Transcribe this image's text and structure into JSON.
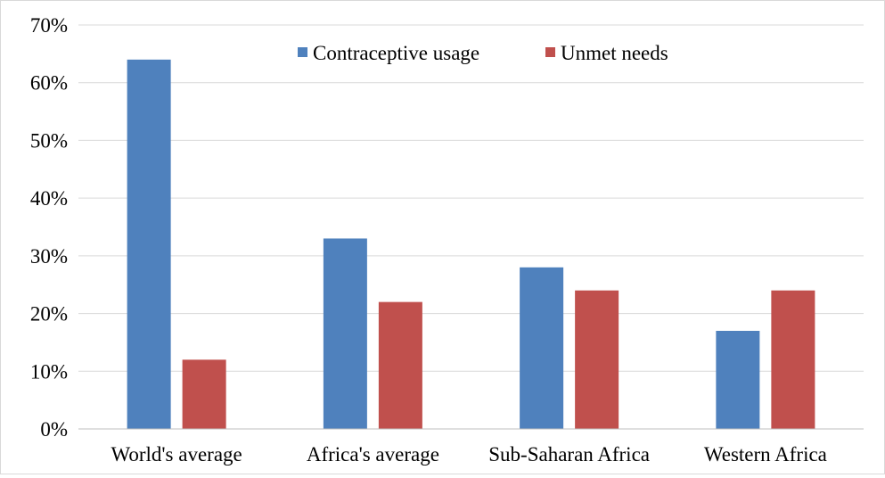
{
  "chart_data": {
    "type": "bar",
    "title": "",
    "xlabel": "",
    "ylabel": "",
    "categories": [
      "World's average",
      "Africa's average",
      "Sub-Saharan Africa",
      "Western Africa"
    ],
    "series": [
      {
        "name": "Contraceptive usage",
        "color": "#4f81bd",
        "values": [
          64,
          33,
          28,
          17
        ]
      },
      {
        "name": "Unmet needs",
        "color": "#c0504d",
        "values": [
          12,
          22,
          24,
          24
        ]
      }
    ],
    "ylim": [
      0,
      70
    ],
    "yticks": [
      0,
      10,
      20,
      30,
      40,
      50,
      60,
      70
    ],
    "ytick_labels": [
      "0%",
      "10%",
      "20%",
      "30%",
      "40%",
      "50%",
      "60%",
      "70%"
    ],
    "grid": true,
    "legend": "top-center"
  }
}
